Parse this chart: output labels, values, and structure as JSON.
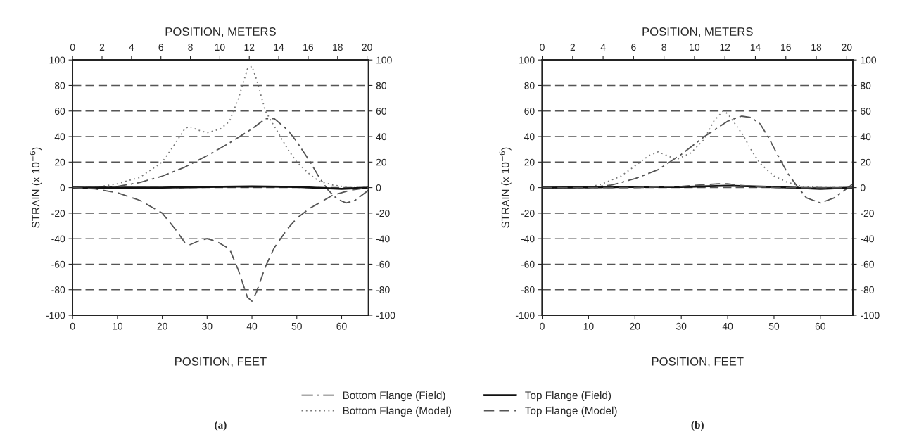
{
  "chart_data": [
    {
      "type": "line",
      "xlabel": "POSITION, FEET",
      "x2label": "POSITION, METERS",
      "ylabel": "STRAIN (x 10$^{−6}$)",
      "annotations": [
        "(a)"
      ],
      "xlim": [
        0,
        66
      ],
      "xticks": [
        0,
        10,
        20,
        30,
        40,
        50,
        60
      ],
      "x2lim": [
        0,
        20.1
      ],
      "x2ticks": [
        0,
        2,
        4,
        6,
        8,
        10,
        12,
        14,
        16,
        18,
        20
      ],
      "ylim": [
        -100,
        100
      ],
      "yticks": [
        -100,
        -80,
        -60,
        -40,
        -20,
        0,
        20,
        40,
        60,
        80,
        100
      ],
      "y2lim": [
        -100,
        100
      ],
      "y2ticks": [
        -100,
        -80,
        -60,
        -40,
        -20,
        0,
        20,
        40,
        60,
        80,
        100
      ],
      "grid": "y",
      "legend": "bottom",
      "series": [
        {
          "name": "Bottom Flange (Field)",
          "color": "#555555",
          "line_style": "dashdot",
          "x": [
            0,
            5,
            10,
            15,
            20,
            25,
            30,
            35,
            40,
            43,
            45,
            48,
            50,
            53,
            55,
            57,
            59,
            61,
            63,
            66
          ],
          "values": [
            0,
            0,
            1,
            4,
            9,
            16,
            25,
            35,
            46,
            54,
            54,
            45,
            36,
            20,
            8,
            -2,
            -9,
            -12,
            -10,
            -2
          ]
        },
        {
          "name": "Bottom Flange (Model)",
          "color": "#777777",
          "line_style": "dotted",
          "x": [
            0,
            5,
            10,
            15,
            20,
            23,
            25,
            26,
            28,
            30,
            33,
            35,
            37,
            39,
            40,
            41,
            43,
            45,
            48,
            50,
            53,
            55,
            58,
            62,
            66
          ],
          "values": [
            0,
            0,
            3,
            8,
            20,
            35,
            46,
            48,
            45,
            43,
            46,
            52,
            70,
            93,
            95,
            85,
            60,
            48,
            30,
            20,
            10,
            5,
            2,
            0,
            0
          ]
        },
        {
          "name": "Top Flange (Field)",
          "color": "#111111",
          "line_style": "solid",
          "x": [
            0,
            20,
            30,
            40,
            50,
            60,
            66
          ],
          "values": [
            0,
            0,
            0.5,
            1,
            0.5,
            -1,
            0
          ]
        },
        {
          "name": "Top Flange (Model)",
          "color": "#555555",
          "line_style": "dashed",
          "x": [
            0,
            5,
            10,
            15,
            20,
            23,
            25,
            26,
            28,
            30,
            32,
            35,
            37,
            39,
            40,
            41,
            43,
            45,
            48,
            50,
            53,
            55,
            58,
            62,
            66
          ],
          "values": [
            0,
            -1,
            -4,
            -10,
            -20,
            -33,
            -43,
            -45,
            -42,
            -40,
            -42,
            -48,
            -65,
            -86,
            -89,
            -82,
            -62,
            -47,
            -32,
            -24,
            -16,
            -12,
            -6,
            -2,
            0
          ]
        }
      ]
    },
    {
      "type": "line",
      "xlabel": "POSITION, FEET",
      "x2label": "POSITION, METERS",
      "ylabel": "STRAIN (x 10$^{−6}$)",
      "annotations": [
        "(b)"
      ],
      "xlim": [
        0,
        67
      ],
      "xticks": [
        0,
        10,
        20,
        30,
        40,
        50,
        60
      ],
      "x2lim": [
        0,
        20.4
      ],
      "x2ticks": [
        0,
        2,
        4,
        6,
        8,
        10,
        12,
        14,
        16,
        18,
        20
      ],
      "ylim": [
        -100,
        100
      ],
      "yticks": [
        -100,
        -80,
        -60,
        -40,
        -20,
        0,
        20,
        40,
        60,
        80,
        100
      ],
      "y2lim": [
        -100,
        100
      ],
      "y2ticks": [
        -100,
        -80,
        -60,
        -40,
        -20,
        0,
        20,
        40,
        60,
        80,
        100
      ],
      "grid": "y",
      "series": [
        {
          "color": "#555555",
          "line_style": "dashdot",
          "x": [
            0,
            10,
            15,
            20,
            25,
            27.5,
            30,
            35,
            40,
            43,
            45,
            47,
            49,
            51,
            53,
            55,
            57,
            60,
            63,
            66,
            67
          ],
          "values": [
            0,
            0,
            2,
            7,
            14,
            20,
            26,
            40,
            52,
            56,
            55,
            50,
            38,
            24,
            11,
            1,
            -8,
            -12,
            -8,
            0,
            3
          ]
        },
        {
          "color": "#777777",
          "line_style": "dotted",
          "x": [
            0,
            10,
            13,
            17,
            20,
            23,
            25,
            27,
            29,
            32,
            35,
            37,
            39,
            40,
            42,
            43.5,
            45,
            47,
            50,
            53,
            56,
            60,
            67
          ],
          "values": [
            0,
            0,
            3,
            9,
            17,
            25,
            28,
            25,
            22,
            27,
            38,
            52,
            60,
            58,
            48,
            40,
            30,
            19,
            9,
            4,
            1,
            0,
            0
          ]
        },
        {
          "color": "#111111",
          "line_style": "solid",
          "x": [
            0,
            20,
            30,
            40,
            50,
            60,
            67
          ],
          "values": [
            0,
            0.5,
            0.5,
            1.5,
            0.5,
            -1,
            0
          ]
        },
        {
          "color": "#555555",
          "line_style": "dashed",
          "x": [
            0,
            20,
            30,
            38,
            40,
            42,
            50,
            67
          ],
          "values": [
            0,
            0,
            1,
            3,
            3,
            2,
            0,
            0
          ]
        }
      ]
    }
  ]
}
